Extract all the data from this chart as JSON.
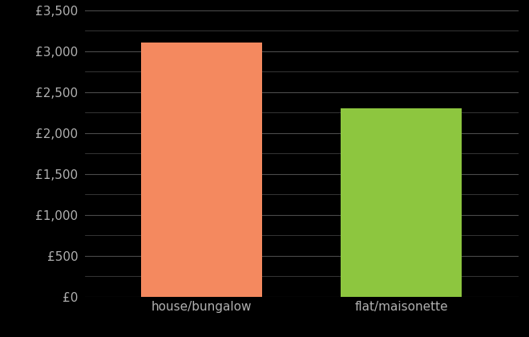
{
  "categories": [
    "house/bungalow",
    "flat/maisonette"
  ],
  "values": [
    3100,
    2300
  ],
  "bar_colors": [
    "#f4895f",
    "#8dc63f"
  ],
  "background_color": "#000000",
  "text_color": "#b0b0b0",
  "grid_color": "#4a4a4a",
  "ylim": [
    0,
    3500
  ],
  "yticks": [
    0,
    500,
    1000,
    1500,
    2000,
    2500,
    3000,
    3500
  ],
  "tick_fontsize": 11,
  "label_fontsize": 11,
  "bar_width": 0.28,
  "x_positions": [
    0.27,
    0.73
  ]
}
